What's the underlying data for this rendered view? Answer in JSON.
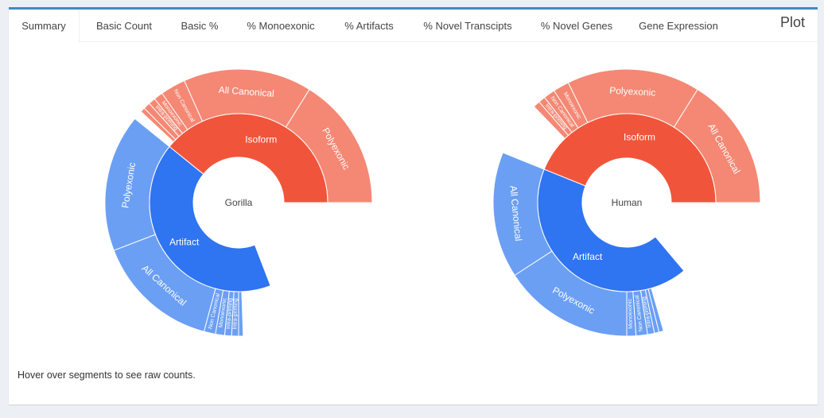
{
  "tabs": [
    {
      "label": "Summary",
      "active": true
    },
    {
      "label": "Basic Count",
      "active": false
    },
    {
      "label": "Basic %",
      "active": false
    },
    {
      "label": "% Monoexonic",
      "active": false
    },
    {
      "label": "% Artifacts",
      "active": false
    },
    {
      "label": "% Novel Transcipts",
      "active": false
    },
    {
      "label": "% Novel Genes",
      "active": false
    },
    {
      "label": "Gene Expression",
      "active": false
    }
  ],
  "box_title": "Plot",
  "note": "Hover over segments to see raw counts.",
  "colors": {
    "isoform_inner": "#f0553b",
    "isoform_outer": "#f48874",
    "artifact_inner": "#2f74f0",
    "artifact_outer": "#6b9ff4",
    "accent": "#3c8dbc"
  },
  "chart_data": [
    {
      "type": "sunburst",
      "center_label": "Gorilla",
      "inner": [
        {
          "label": "Isoform",
          "start_deg": 0,
          "sweep_deg": 141
        },
        {
          "label": "Artifact",
          "start_deg": 141,
          "sweep_deg": 150
        }
      ],
      "outer": [
        {
          "label": "Polyexonic",
          "parent": "Isoform",
          "start_deg": 0,
          "sweep_deg": 58,
          "max_ring": true
        },
        {
          "label": "All Canonical",
          "parent": "Isoform",
          "start_deg": 58,
          "sweep_deg": 56,
          "max_ring": true
        },
        {
          "label": "Non Canonical",
          "parent": "Isoform",
          "start_deg": 114,
          "sweep_deg": 11,
          "max_ring": true
        },
        {
          "label": "Monoexonic",
          "parent": "Isoform",
          "start_deg": 125,
          "sweep_deg": 4,
          "max_ring": true
        },
        {
          "label": "Intra-priming",
          "parent": "Isoform",
          "start_deg": 129,
          "sweep_deg": 3,
          "max_ring": true
        },
        {
          "label": "",
          "parent": "Isoform",
          "start_deg": 132,
          "sweep_deg": 3,
          "max_ring": true
        },
        {
          "label": "",
          "parent": "Isoform",
          "start_deg": 135,
          "sweep_deg": 2,
          "max_ring": true
        },
        {
          "label": "Polyexonic",
          "parent": "Artifact",
          "start_deg": 141,
          "sweep_deg": 60,
          "max_ring": true
        },
        {
          "label": "All Canonical",
          "parent": "Artifact",
          "start_deg": 201,
          "sweep_deg": 54,
          "max_ring": false
        },
        {
          "label": "Non Canonical",
          "parent": "Artifact",
          "start_deg": 255,
          "sweep_deg": 5,
          "max_ring": false
        },
        {
          "label": "Monoexonic",
          "parent": "Artifact",
          "start_deg": 260,
          "sweep_deg": 4,
          "max_ring": false
        },
        {
          "label": "Intra-priming",
          "parent": "Artifact",
          "start_deg": 264,
          "sweep_deg": 3,
          "max_ring": false
        },
        {
          "label": "Intra-priming",
          "parent": "Artifact",
          "start_deg": 267,
          "sweep_deg": 3,
          "max_ring": false
        },
        {
          "label": "",
          "parent": "Artifact",
          "start_deg": 270,
          "sweep_deg": 2,
          "max_ring": false
        }
      ]
    },
    {
      "type": "sunburst",
      "center_label": "Human",
      "inner": [
        {
          "label": "Isoform",
          "start_deg": 0,
          "sweep_deg": 158
        },
        {
          "label": "Artifact",
          "start_deg": 158,
          "sweep_deg": 152
        }
      ],
      "outer": [
        {
          "label": "All Canonical",
          "parent": "Isoform",
          "start_deg": 0,
          "sweep_deg": 58,
          "max_ring": true
        },
        {
          "label": "Polyexonic",
          "parent": "Isoform",
          "start_deg": 58,
          "sweep_deg": 58,
          "max_ring": true
        },
        {
          "label": "Monoexonic",
          "parent": "Isoform",
          "start_deg": 116,
          "sweep_deg": 7,
          "max_ring": true
        },
        {
          "label": "Non Canonical",
          "parent": "Isoform",
          "start_deg": 123,
          "sweep_deg": 5,
          "max_ring": true
        },
        {
          "label": "Intra-priming",
          "parent": "Isoform",
          "start_deg": 128,
          "sweep_deg": 3,
          "max_ring": true
        },
        {
          "label": "",
          "parent": "Isoform",
          "start_deg": 131,
          "sweep_deg": 3,
          "max_ring": true
        },
        {
          "label": "All Canonical",
          "parent": "Artifact",
          "start_deg": 158,
          "sweep_deg": 55,
          "max_ring": true
        },
        {
          "label": "Polyexonic",
          "parent": "Artifact",
          "start_deg": 213,
          "sweep_deg": 57,
          "max_ring": false
        },
        {
          "label": "Monoexonic",
          "parent": "Artifact",
          "start_deg": 270,
          "sweep_deg": 4,
          "max_ring": false
        },
        {
          "label": "Non Canonical",
          "parent": "Artifact",
          "start_deg": 274,
          "sweep_deg": 5,
          "max_ring": false
        },
        {
          "label": "Intra-priming",
          "parent": "Artifact",
          "start_deg": 279,
          "sweep_deg": 3,
          "max_ring": false
        },
        {
          "label": "",
          "parent": "Artifact",
          "start_deg": 282,
          "sweep_deg": 2,
          "max_ring": false
        },
        {
          "label": "",
          "parent": "Artifact",
          "start_deg": 284,
          "sweep_deg": 2,
          "max_ring": false
        }
      ]
    }
  ]
}
